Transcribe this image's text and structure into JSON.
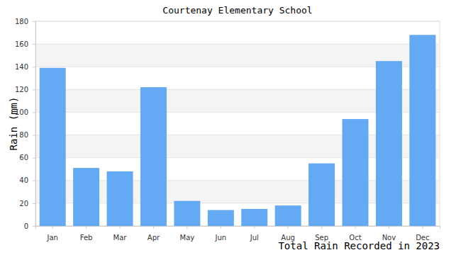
{
  "chart_data": {
    "type": "bar",
    "title": "Courtenay Elementary School",
    "y_label": "Rain (mm)",
    "x_label": "Total Rain Recorded in 2023",
    "categories": [
      "Jan",
      "Feb",
      "Mar",
      "Apr",
      "May",
      "Jun",
      "Jul",
      "Aug",
      "Sep",
      "Oct",
      "Nov",
      "Dec"
    ],
    "values": [
      139,
      51,
      48,
      122,
      22,
      14,
      15,
      18,
      55,
      94,
      145,
      168
    ],
    "color": "#63a9f4",
    "ylim": [
      0,
      180
    ],
    "yticks": [
      0,
      20,
      40,
      60,
      80,
      100,
      120,
      140,
      160,
      180
    ],
    "grid": true
  }
}
